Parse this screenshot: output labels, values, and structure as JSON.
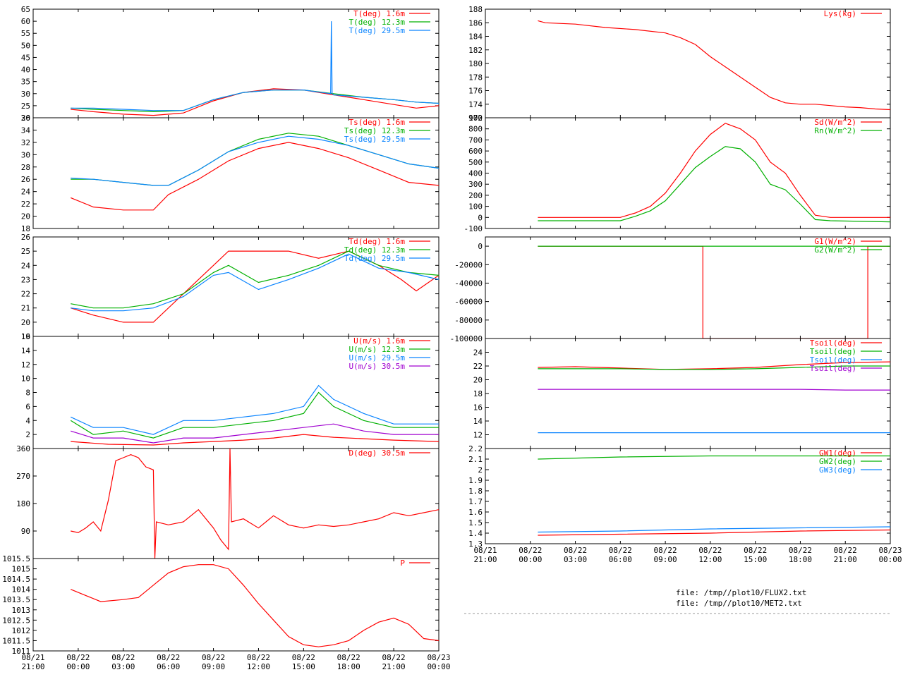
{
  "x_ticks": [
    {
      "top": "08/21",
      "bottom": "21:00"
    },
    {
      "top": "08/22",
      "bottom": "00:00"
    },
    {
      "top": "08/22",
      "bottom": "03:00"
    },
    {
      "top": "08/22",
      "bottom": "06:00"
    },
    {
      "top": "08/22",
      "bottom": "09:00"
    },
    {
      "top": "08/22",
      "bottom": "12:00"
    },
    {
      "top": "08/22",
      "bottom": "15:00"
    },
    {
      "top": "08/22",
      "bottom": "18:00"
    },
    {
      "top": "08/22",
      "bottom": "21:00"
    },
    {
      "top": "08/23",
      "bottom": "00:00"
    }
  ],
  "files": [
    "file: /tmp//plot10/FLUX2.txt",
    "file: /tmp//plot10/MET2.txt"
  ],
  "colors": {
    "red": "#ff0000",
    "green": "#00b000",
    "blue": "#0a84ff",
    "purple": "#a000d0"
  },
  "chart_data": [
    {
      "type": "line",
      "x_unit": "hours since 08/21 21:00",
      "xlim": [
        0,
        27
      ],
      "ylim": [
        20,
        65
      ],
      "y_ticks": [
        "20",
        "25",
        "30",
        "35",
        "40",
        "45",
        "50",
        "55",
        "60",
        "65"
      ],
      "series": [
        {
          "name": "T(deg)  1.6m",
          "color": "red",
          "x": [
            2.5,
            4,
            6,
            8,
            10,
            12,
            14,
            16,
            18,
            20,
            22,
            24,
            25.5,
            27
          ],
          "y": [
            23.5,
            22.5,
            21.5,
            21,
            22,
            27,
            30.5,
            32,
            31.5,
            29.5,
            27.5,
            25.5,
            24,
            25
          ]
        },
        {
          "name": "T(deg) 12.3m",
          "color": "green",
          "x": [
            2.5,
            4,
            6,
            8,
            10,
            12,
            14,
            16,
            18,
            20,
            22,
            24,
            25.5,
            27
          ],
          "y": [
            24,
            23.5,
            23,
            22.5,
            23,
            27.5,
            30.5,
            31.5,
            31.5,
            30,
            28.5,
            27.5,
            26.5,
            26
          ]
        },
        {
          "name": "T(deg) 29.5m",
          "color": "blue",
          "x": [
            2.5,
            4,
            6,
            8,
            10,
            12,
            14,
            16,
            18,
            19.8,
            19.85,
            19.9,
            20,
            22,
            24,
            25.5,
            27
          ],
          "y": [
            24,
            24,
            23.5,
            23,
            23,
            27.5,
            30.5,
            31.5,
            31.5,
            30,
            60,
            30,
            29.5,
            28.5,
            27.5,
            26.5,
            26
          ]
        }
      ]
    },
    {
      "type": "line",
      "xlim": [
        0,
        27
      ],
      "ylim": [
        18,
        36
      ],
      "y_ticks": [
        "18",
        "20",
        "22",
        "24",
        "26",
        "28",
        "30",
        "32",
        "34",
        "36"
      ],
      "series": [
        {
          "name": "Ts(deg)  1.6m",
          "color": "red",
          "x": [
            2.5,
            4,
            6,
            8,
            9,
            11,
            13,
            15,
            17,
            19,
            21,
            23,
            25,
            27
          ],
          "y": [
            23,
            21.5,
            21,
            21,
            23.5,
            26,
            29,
            31,
            32,
            31,
            29.5,
            27.5,
            25.5,
            25
          ]
        },
        {
          "name": "Ts(deg) 12.3m",
          "color": "green",
          "x": [
            2.5,
            4,
            6,
            8,
            9,
            11,
            13,
            15,
            17,
            19,
            21,
            23,
            25,
            27
          ],
          "y": [
            26,
            26,
            25.5,
            25,
            25,
            27.5,
            30.5,
            32.5,
            33.5,
            33,
            31.5,
            30,
            28.5,
            27.8
          ]
        },
        {
          "name": "Ts(deg) 29.5m",
          "color": "blue",
          "x": [
            2.5,
            4,
            6,
            8,
            9,
            11,
            13,
            15,
            17,
            19,
            21,
            23,
            25,
            27
          ],
          "y": [
            26.2,
            26,
            25.5,
            25,
            25,
            27.5,
            30.5,
            32,
            33,
            32.5,
            31.5,
            30,
            28.5,
            27.8
          ]
        }
      ]
    },
    {
      "type": "line",
      "xlim": [
        0,
        27
      ],
      "ylim": [
        19,
        26
      ],
      "y_ticks": [
        "19",
        "20",
        "21",
        "22",
        "23",
        "24",
        "25",
        "26"
      ],
      "series": [
        {
          "name": "Td(deg)  1.6m",
          "color": "red",
          "x": [
            2.5,
            4,
            6,
            8,
            10,
            12,
            13,
            15,
            17,
            19,
            21,
            23,
            24.5,
            25.5,
            27
          ],
          "y": [
            21,
            20.5,
            20,
            20,
            22,
            24,
            25,
            25,
            25,
            24.5,
            25,
            24,
            23,
            22.2,
            23.3
          ]
        },
        {
          "name": "Td(deg) 12.3m",
          "color": "green",
          "x": [
            2.5,
            4,
            6,
            8,
            10,
            12,
            13,
            15,
            17,
            19,
            21,
            23,
            25,
            27
          ],
          "y": [
            21.3,
            21,
            21,
            21.3,
            22,
            23.5,
            24,
            22.8,
            23.3,
            24,
            25,
            24,
            23.5,
            23.3
          ]
        },
        {
          "name": "Td(deg) 29.5m",
          "color": "blue",
          "x": [
            2.5,
            4,
            6,
            8,
            10,
            12,
            13,
            15,
            17,
            19,
            21,
            23,
            25,
            27
          ],
          "y": [
            21,
            20.8,
            20.8,
            21,
            21.8,
            23.3,
            23.5,
            22.3,
            23,
            23.8,
            24.8,
            23.8,
            23.5,
            23
          ]
        }
      ]
    },
    {
      "type": "line",
      "xlim": [
        0,
        27
      ],
      "ylim": [
        0,
        16
      ],
      "y_ticks": [
        "2",
        "4",
        "6",
        "8",
        "10",
        "12",
        "14",
        "16"
      ],
      "series": [
        {
          "name": "U(m/s)  1.6m",
          "color": "red",
          "x": [
            2.5,
            5,
            8,
            10,
            12,
            14,
            16,
            18,
            20,
            22,
            24,
            27
          ],
          "y": [
            1,
            0.6,
            0.5,
            0.8,
            1,
            1.2,
            1.5,
            2,
            1.6,
            1.4,
            1.2,
            1
          ]
        },
        {
          "name": "U(m/s) 12.3m",
          "color": "green",
          "x": [
            2.5,
            4,
            6,
            8,
            10,
            12,
            14,
            16,
            18,
            19,
            20,
            22,
            24,
            27
          ],
          "y": [
            4,
            2,
            2.5,
            1.5,
            3,
            3,
            3.5,
            4,
            5,
            8,
            6,
            4,
            3,
            3
          ]
        },
        {
          "name": "U(m/s) 29.5m",
          "color": "blue",
          "x": [
            2.5,
            4,
            6,
            8,
            10,
            12,
            14,
            16,
            18,
            19,
            20,
            22,
            24,
            27
          ],
          "y": [
            4.5,
            3,
            3,
            2,
            4,
            4,
            4.5,
            5,
            6,
            9,
            7,
            5,
            3.5,
            3.5
          ]
        },
        {
          "name": "U(m/s) 30.5m",
          "color": "purple",
          "x": [
            2.5,
            4,
            6,
            8,
            10,
            12,
            14,
            16,
            18,
            20,
            22,
            24,
            27
          ],
          "y": [
            2.5,
            1.5,
            1.5,
            0.8,
            1.5,
            1.5,
            2,
            2.5,
            3,
            3.5,
            2.5,
            2,
            2
          ]
        }
      ]
    },
    {
      "type": "line",
      "xlim": [
        0,
        27
      ],
      "ylim": [
        0,
        360
      ],
      "y_ticks": [
        "90",
        "180",
        "270",
        "360"
      ],
      "series": [
        {
          "name": "D(deg)  30.5m",
          "color": "red",
          "x": [
            2.5,
            3,
            3.5,
            4,
            4.5,
            5,
            5.5,
            6,
            6.5,
            7,
            7.5,
            8,
            8.1,
            8.2,
            9,
            10,
            11,
            12,
            12.5,
            13,
            13.1,
            13.2,
            14,
            15,
            16,
            17,
            18,
            19,
            20,
            21,
            22,
            23,
            24,
            25,
            26,
            27
          ],
          "y": [
            90,
            85,
            100,
            120,
            90,
            190,
            320,
            330,
            340,
            330,
            300,
            290,
            0,
            120,
            110,
            120,
            160,
            100,
            60,
            30,
            360,
            120,
            130,
            100,
            140,
            110,
            100,
            110,
            105,
            110,
            120,
            130,
            150,
            140,
            150,
            160
          ]
        }
      ]
    },
    {
      "type": "line",
      "xlim": [
        0,
        27
      ],
      "ylim": [
        1011,
        1015.5
      ],
      "y_ticks": [
        "1011",
        "1011.5",
        "1012",
        "1012.5",
        "1013",
        "1013.5",
        "1014",
        "1014.5",
        "1015",
        "1015.5"
      ],
      "series": [
        {
          "name": "P",
          "color": "red",
          "x": [
            2.5,
            3.5,
            4.5,
            6,
            7,
            8,
            9,
            10,
            11,
            12,
            13,
            14,
            15,
            16,
            17,
            18,
            19,
            20,
            21,
            22,
            23,
            24,
            25,
            26,
            27
          ],
          "y": [
            1014,
            1013.7,
            1013.4,
            1013.5,
            1013.6,
            1014.2,
            1014.8,
            1015.1,
            1015.2,
            1015.2,
            1015,
            1014.2,
            1013.3,
            1012.5,
            1011.7,
            1011.3,
            1011.2,
            1011.3,
            1011.5,
            1012,
            1012.4,
            1012.6,
            1012.3,
            1011.6,
            1011.5
          ]
        }
      ]
    },
    {
      "type": "line",
      "xlim": [
        0,
        27
      ],
      "ylim": [
        172,
        188
      ],
      "y_ticks": [
        "172",
        "174",
        "176",
        "178",
        "180",
        "182",
        "184",
        "186",
        "188"
      ],
      "series": [
        {
          "name": "Lys(kg)",
          "color": "red",
          "x": [
            3.5,
            4,
            6,
            8,
            10,
            12,
            13,
            14,
            15,
            16,
            17,
            18,
            19,
            20,
            21,
            22,
            23,
            24,
            25,
            26,
            27
          ],
          "y": [
            186.3,
            186,
            185.8,
            185.3,
            185,
            184.5,
            183.8,
            182.8,
            181,
            179.5,
            178,
            176.5,
            175,
            174.2,
            174,
            174,
            173.8,
            173.6,
            173.5,
            173.3,
            173.2
          ]
        }
      ]
    },
    {
      "type": "line",
      "xlim": [
        0,
        27
      ],
      "ylim": [
        -100,
        900
      ],
      "y_ticks": [
        "-100",
        "0",
        "100",
        "200",
        "300",
        "400",
        "500",
        "600",
        "700",
        "800",
        "900"
      ],
      "series": [
        {
          "name": "Sd(W/m^2)",
          "color": "red",
          "x": [
            3.5,
            6,
            9,
            10,
            11,
            12,
            13,
            14,
            15,
            16,
            17,
            18,
            19,
            20,
            21,
            22,
            23,
            27
          ],
          "y": [
            0,
            0,
            0,
            40,
            100,
            220,
            400,
            600,
            750,
            850,
            800,
            700,
            500,
            400,
            200,
            20,
            0,
            0
          ]
        },
        {
          "name": "Rn(W/m^2)",
          "color": "green",
          "x": [
            3.5,
            6,
            9,
            10,
            11,
            12,
            13,
            14,
            15,
            16,
            17,
            18,
            19,
            20,
            21,
            22,
            23,
            27
          ],
          "y": [
            -30,
            -30,
            -30,
            10,
            60,
            150,
            300,
            450,
            550,
            640,
            620,
            500,
            300,
            250,
            120,
            -20,
            -30,
            -40
          ]
        }
      ]
    },
    {
      "type": "line",
      "xlim": [
        0,
        27
      ],
      "ylim": [
        -100000,
        10000
      ],
      "y_ticks": [
        "-100000",
        "-80000",
        "-60000",
        "-40000",
        "-20000",
        "0"
      ],
      "series": [
        {
          "name": "G1(W/m^2)",
          "color": "red",
          "x": [
            3.5,
            14.5,
            14.5,
            25.5,
            25.5,
            27
          ],
          "y": [
            0,
            0,
            -100000,
            -100000,
            0,
            0
          ]
        },
        {
          "name": "G2(W/m^2)",
          "color": "green",
          "x": [
            3.5,
            27
          ],
          "y": [
            0,
            0
          ]
        }
      ]
    },
    {
      "type": "line",
      "xlim": [
        0,
        27
      ],
      "ylim": [
        10,
        26
      ],
      "y_ticks": [
        "12",
        "14",
        "16",
        "18",
        "20",
        "22",
        "24"
      ],
      "series": [
        {
          "name": "Tsoil(deg)",
          "color": "red",
          "x": [
            3.5,
            6,
            9,
            12,
            15,
            18,
            21,
            24,
            27
          ],
          "y": [
            21.8,
            21.9,
            21.7,
            21.5,
            21.6,
            21.8,
            22.2,
            22.5,
            22.6
          ]
        },
        {
          "name": "Tsoil(deg)",
          "color": "green",
          "x": [
            3.5,
            6,
            9,
            12,
            15,
            18,
            21,
            24,
            27
          ],
          "y": [
            21.6,
            21.6,
            21.6,
            21.5,
            21.5,
            21.6,
            21.8,
            22,
            22
          ]
        },
        {
          "name": "Tsoil(deg)",
          "color": "blue",
          "x": [
            3.5,
            6,
            9,
            12,
            15,
            18,
            21,
            24,
            27
          ],
          "y": [
            12.3,
            12.3,
            12.3,
            12.3,
            12.3,
            12.3,
            12.3,
            12.3,
            12.3
          ]
        },
        {
          "name": "Tsoil(deg)",
          "color": "purple",
          "x": [
            3.5,
            6,
            9,
            12,
            15,
            18,
            21,
            24,
            27
          ],
          "y": [
            18.6,
            18.6,
            18.6,
            18.6,
            18.6,
            18.6,
            18.6,
            18.5,
            18.5
          ]
        }
      ]
    },
    {
      "type": "line",
      "xlim": [
        0,
        27
      ],
      "ylim": [
        1.3,
        2.2
      ],
      "y_ticks": [
        "1.3",
        "1.4",
        "1.5",
        "1.6",
        "1.7",
        "1.8",
        "1.9",
        "2",
        "2.1",
        "2.2"
      ],
      "series": [
        {
          "name": "GW1(deg)",
          "color": "red",
          "x": [
            3.5,
            9,
            15,
            21,
            27
          ],
          "y": [
            1.38,
            1.39,
            1.4,
            1.42,
            1.43
          ]
        },
        {
          "name": "GW2(deg)",
          "color": "green",
          "x": [
            3.5,
            9,
            15,
            21,
            27
          ],
          "y": [
            2.1,
            2.12,
            2.13,
            2.13,
            2.13
          ]
        },
        {
          "name": "GW3(deg)",
          "color": "blue",
          "x": [
            3.5,
            9,
            15,
            21,
            27
          ],
          "y": [
            1.41,
            1.42,
            1.44,
            1.45,
            1.46
          ]
        }
      ]
    }
  ]
}
